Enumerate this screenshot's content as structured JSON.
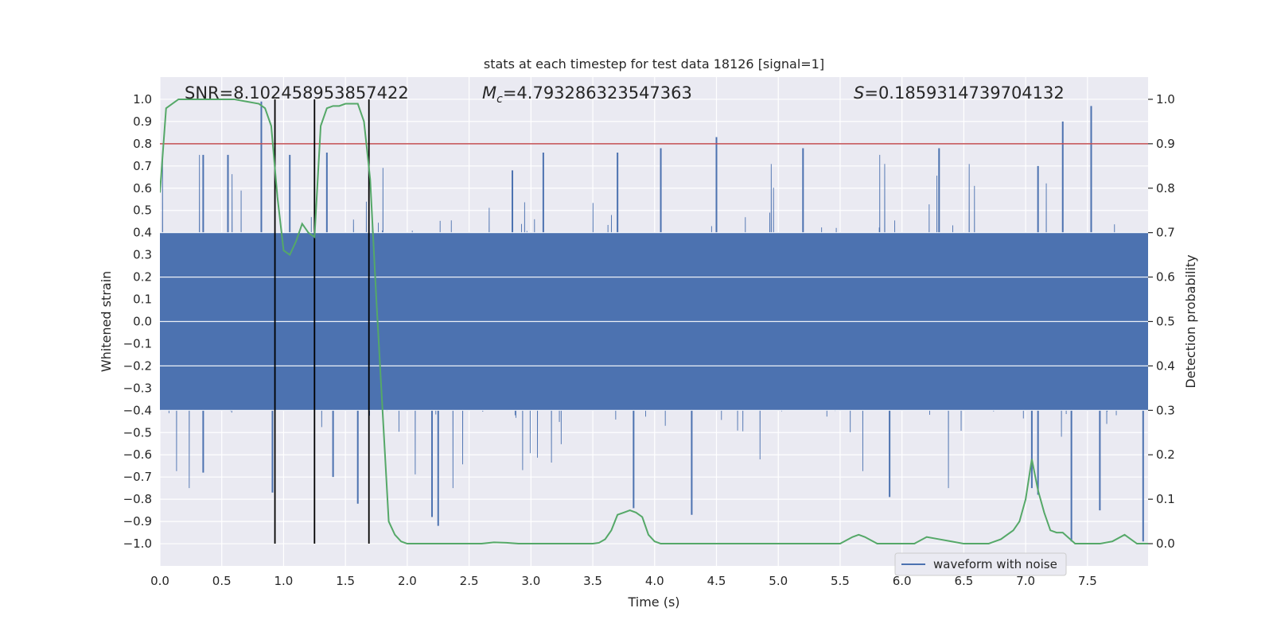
{
  "chart_data": {
    "type": "line",
    "title": "stats at each timestep for test data 18126 [signal=1]",
    "xlabel": "Time (s)",
    "ylabel": "Whitened strain",
    "ylabel_right": "Detection probability",
    "xlim": [
      0,
      7.99
    ],
    "ylim": [
      -1.1,
      1.1
    ],
    "ylim_right": [
      -0.05,
      1.05
    ],
    "x_ticks": [
      0.0,
      0.5,
      1.0,
      1.5,
      2.0,
      2.5,
      3.0,
      3.5,
      4.0,
      4.5,
      5.0,
      5.5,
      6.0,
      6.5,
      7.0,
      7.5
    ],
    "x_tick_labels": [
      "0.0",
      "0.5",
      "1.0",
      "1.5",
      "2.0",
      "2.5",
      "3.0",
      "3.5",
      "4.0",
      "4.5",
      "5.0",
      "5.5",
      "6.0",
      "6.5",
      "7.0",
      "7.5"
    ],
    "y_ticks": [
      -1.0,
      -0.9,
      -0.8,
      -0.7,
      -0.6,
      -0.5,
      -0.4,
      -0.3,
      -0.2,
      -0.1,
      0.0,
      0.1,
      0.2,
      0.3,
      0.4,
      0.5,
      0.6,
      0.7,
      0.8,
      0.9,
      1.0
    ],
    "y_tick_labels": [
      "−1.0",
      "−0.9",
      "−0.8",
      "−0.7",
      "−0.6",
      "−0.5",
      "−0.4",
      "−0.3",
      "−0.2",
      "−0.1",
      "0.0",
      "0.1",
      "0.2",
      "0.3",
      "0.4",
      "0.5",
      "0.6",
      "0.7",
      "0.8",
      "0.9",
      "1.0"
    ],
    "y_right_ticks": [
      0.0,
      0.1,
      0.2,
      0.3,
      0.4,
      0.5,
      0.6,
      0.7,
      0.8,
      0.9,
      1.0
    ],
    "y_right_tick_labels": [
      "0.0",
      "0.1",
      "0.2",
      "0.3",
      "0.4",
      "0.5",
      "0.6",
      "0.7",
      "0.8",
      "0.9",
      "1.0"
    ],
    "annotations": {
      "snr": "SNR=8.102458953857422",
      "mc_symbol": "M",
      "mc_sub": "c",
      "mc_value": "=4.793286323547363",
      "s_symbol": "S",
      "s_value": "=0.1859314739704132"
    },
    "threshold": {
      "value": 0.9,
      "axis": "right",
      "color": "#c44e52"
    },
    "vertical_markers": [
      0.93,
      1.25,
      1.69
    ],
    "legend": {
      "position": "lower-right",
      "entries": [
        {
          "label": "waveform with noise",
          "color": "#4c72b0"
        }
      ]
    },
    "series": [
      {
        "name": "waveform with noise",
        "axis": "left",
        "color": "#4c72b0",
        "style": "dense-noise",
        "core_amplitude": 0.4,
        "peaks_pos": [
          [
            0.82,
            0.99
          ],
          [
            0.35,
            0.75
          ],
          [
            0.55,
            0.75
          ],
          [
            1.05,
            0.75
          ],
          [
            1.35,
            0.76
          ],
          [
            2.85,
            0.68
          ],
          [
            4.5,
            0.83
          ],
          [
            4.05,
            0.78
          ],
          [
            5.2,
            0.78
          ],
          [
            6.3,
            0.78
          ],
          [
            7.3,
            0.9
          ],
          [
            7.53,
            0.97
          ],
          [
            7.1,
            0.7
          ],
          [
            3.7,
            0.76
          ],
          [
            3.1,
            0.76
          ]
        ],
        "peaks_neg": [
          [
            0.91,
            -0.77
          ],
          [
            1.6,
            -0.82
          ],
          [
            2.2,
            -0.88
          ],
          [
            2.25,
            -0.92
          ],
          [
            3.83,
            -0.84
          ],
          [
            4.3,
            -0.87
          ],
          [
            5.9,
            -0.79
          ],
          [
            7.37,
            -0.99
          ],
          [
            7.6,
            -0.85
          ],
          [
            7.95,
            -0.99
          ],
          [
            0.35,
            -0.68
          ],
          [
            1.4,
            -0.7
          ],
          [
            7.05,
            -0.75
          ],
          [
            7.1,
            -0.78
          ]
        ]
      },
      {
        "name": "detection probability",
        "axis": "right",
        "color": "#55a868",
        "x": [
          0.0,
          0.05,
          0.1,
          0.15,
          0.2,
          0.3,
          0.4,
          0.5,
          0.6,
          0.7,
          0.8,
          0.85,
          0.9,
          0.95,
          1.0,
          1.05,
          1.1,
          1.15,
          1.2,
          1.25,
          1.3,
          1.35,
          1.4,
          1.45,
          1.5,
          1.55,
          1.6,
          1.65,
          1.7,
          1.75,
          1.8,
          1.85,
          1.9,
          1.95,
          2.0,
          2.1,
          2.2,
          2.3,
          2.4,
          2.5,
          2.6,
          2.7,
          2.8,
          2.9,
          3.0,
          3.1,
          3.2,
          3.3,
          3.4,
          3.5,
          3.55,
          3.6,
          3.65,
          3.7,
          3.75,
          3.8,
          3.85,
          3.9,
          3.95,
          4.0,
          4.05,
          4.1,
          4.2,
          4.3,
          4.4,
          4.5,
          4.6,
          4.7,
          4.8,
          4.9,
          5.0,
          5.1,
          5.2,
          5.3,
          5.4,
          5.5,
          5.6,
          5.65,
          5.7,
          5.8,
          5.9,
          6.0,
          6.1,
          6.2,
          6.3,
          6.4,
          6.5,
          6.6,
          6.7,
          6.8,
          6.9,
          6.95,
          7.0,
          7.05,
          7.1,
          7.15,
          7.2,
          7.25,
          7.3,
          7.4,
          7.5,
          7.6,
          7.7,
          7.8,
          7.9,
          7.99
        ],
        "y": [
          0.79,
          0.98,
          0.99,
          1.0,
          1.0,
          1.0,
          1.0,
          1.0,
          1.0,
          0.995,
          0.99,
          0.98,
          0.94,
          0.78,
          0.66,
          0.65,
          0.68,
          0.72,
          0.7,
          0.69,
          0.94,
          0.98,
          0.985,
          0.985,
          0.99,
          0.99,
          0.99,
          0.95,
          0.82,
          0.55,
          0.3,
          0.05,
          0.02,
          0.005,
          0.0,
          0.0,
          0.0,
          0.0,
          0.0,
          0.0,
          0.0,
          0.003,
          0.002,
          0.0,
          0.0,
          0.0,
          0.0,
          0.0,
          0.0,
          0.0,
          0.002,
          0.01,
          0.03,
          0.065,
          0.07,
          0.075,
          0.07,
          0.06,
          0.02,
          0.005,
          0.0,
          0.0,
          0.0,
          0.0,
          0.0,
          0.0,
          0.0,
          0.0,
          0.0,
          0.0,
          0.0,
          0.0,
          0.0,
          0.0,
          0.0,
          0.0,
          0.015,
          0.02,
          0.015,
          0.0,
          0.0,
          0.0,
          0.0,
          0.015,
          0.01,
          0.005,
          0.0,
          0.0,
          0.0,
          0.01,
          0.03,
          0.05,
          0.1,
          0.19,
          0.12,
          0.07,
          0.03,
          0.025,
          0.025,
          0.0,
          0.0,
          0.0,
          0.005,
          0.02,
          0.0,
          0.0
        ]
      }
    ]
  }
}
